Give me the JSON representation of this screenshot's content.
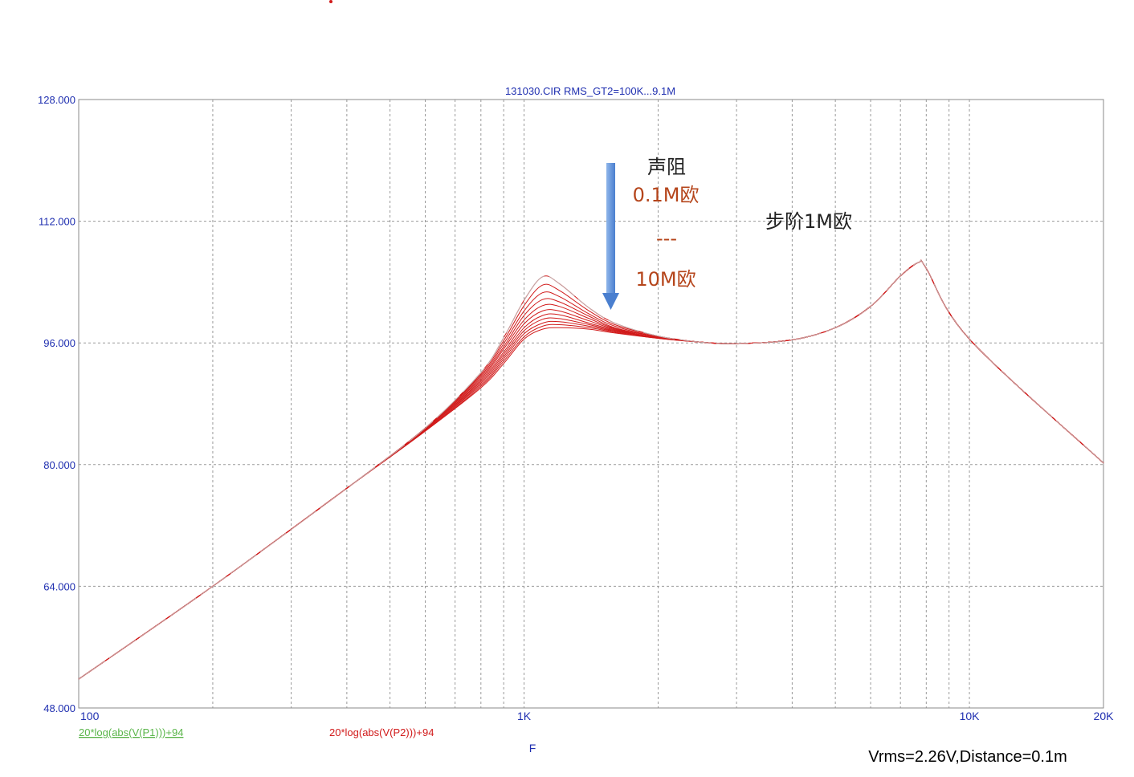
{
  "chart_data": {
    "type": "line",
    "title": "131030.CIR RMS_GT2=100K...9.1M",
    "xlabel": "F",
    "x_scale": "log",
    "xlim": [
      100,
      20000
    ],
    "ylim": [
      48,
      128
    ],
    "x_ticks": [
      {
        "value": 100,
        "label": "100"
      },
      {
        "value": 1000,
        "label": "1K"
      },
      {
        "value": 10000,
        "label": "10K"
      },
      {
        "value": 20000,
        "label": "20K"
      }
    ],
    "y_ticks": [
      {
        "value": 128,
        "label": "128.000"
      },
      {
        "value": 112,
        "label": "112.000"
      },
      {
        "value": 96,
        "label": "96.000"
      },
      {
        "value": 80,
        "label": "80.000"
      },
      {
        "value": 64,
        "label": "64.000"
      },
      {
        "value": 48,
        "label": "48.000"
      }
    ],
    "grid": true,
    "legend": [
      {
        "label": "20*log(abs(V(P1)))+94",
        "color": "#5ab54a"
      },
      {
        "label": "20*log(abs(V(P2)))+94",
        "color": "#d11a1a"
      }
    ],
    "series": [
      {
        "x": [
          100,
          200,
          400,
          600,
          800,
          900,
          1000,
          1100,
          1200,
          1400,
          1600,
          2000,
          2500,
          3000,
          4000,
          5000,
          6000,
          7000,
          7700,
          8000,
          10000,
          20000
        ],
        "y": [
          51.8,
          64.0,
          76.9,
          84.8,
          92.1,
          96.7,
          101.6,
          104.7,
          103.8,
          100.6,
          98.6,
          96.9,
          96.1,
          95.9,
          96.4,
          98.0,
          100.8,
          104.8,
          106.6,
          105.8,
          96.5,
          80.2
        ]
      },
      {
        "x": [
          100,
          200,
          400,
          600,
          800,
          900,
          1000,
          1100,
          1200,
          1400,
          1600,
          2000,
          2500,
          3000,
          4000,
          5000,
          6000,
          7000,
          7700,
          8000,
          10000,
          20000
        ],
        "y": [
          51.8,
          64.0,
          76.9,
          84.8,
          91.9,
          96.3,
          100.9,
          103.6,
          102.9,
          100.2,
          98.4,
          96.9,
          96.1,
          95.9,
          96.4,
          98.0,
          100.8,
          104.8,
          106.6,
          105.8,
          96.5,
          80.2
        ]
      },
      {
        "x": [
          100,
          200,
          400,
          600,
          800,
          900,
          1000,
          1100,
          1200,
          1400,
          1600,
          2000,
          2500,
          3000,
          4000,
          5000,
          6000,
          7000,
          7700,
          8000,
          10000,
          20000
        ],
        "y": [
          51.8,
          64.0,
          76.9,
          84.8,
          91.7,
          95.9,
          100.2,
          102.6,
          102.1,
          99.8,
          98.2,
          96.8,
          96.1,
          95.9,
          96.4,
          98.0,
          100.8,
          104.8,
          106.6,
          105.8,
          96.5,
          80.2
        ]
      },
      {
        "x": [
          100,
          200,
          400,
          600,
          800,
          900,
          1000,
          1100,
          1200,
          1400,
          1600,
          2000,
          2500,
          3000,
          4000,
          5000,
          6000,
          7000,
          7700,
          8000,
          10000,
          20000
        ],
        "y": [
          51.8,
          64.0,
          76.9,
          84.7,
          91.5,
          95.5,
          99.6,
          101.7,
          101.4,
          99.5,
          98.0,
          96.8,
          96.1,
          95.9,
          96.4,
          98.0,
          100.8,
          104.8,
          106.6,
          105.8,
          96.5,
          80.2
        ]
      },
      {
        "x": [
          100,
          200,
          400,
          600,
          800,
          900,
          1000,
          1100,
          1200,
          1400,
          1600,
          2000,
          2500,
          3000,
          4000,
          5000,
          6000,
          7000,
          7700,
          8000,
          10000,
          20000
        ],
        "y": [
          51.8,
          64.0,
          76.9,
          84.7,
          91.3,
          95.2,
          99.0,
          100.9,
          100.8,
          99.2,
          97.9,
          96.8,
          96.1,
          95.9,
          96.4,
          98.0,
          100.8,
          104.8,
          106.6,
          105.8,
          96.5,
          80.2
        ]
      },
      {
        "x": [
          100,
          200,
          400,
          600,
          800,
          900,
          1000,
          1100,
          1200,
          1400,
          1600,
          2000,
          2500,
          3000,
          4000,
          5000,
          6000,
          7000,
          7700,
          8000,
          10000,
          20000
        ],
        "y": [
          51.8,
          64.0,
          76.9,
          84.6,
          91.1,
          94.8,
          98.5,
          100.2,
          100.2,
          98.9,
          97.8,
          96.7,
          96.1,
          95.9,
          96.4,
          98.0,
          100.8,
          104.8,
          106.6,
          105.8,
          96.5,
          80.2
        ]
      },
      {
        "x": [
          100,
          200,
          400,
          600,
          800,
          900,
          1000,
          1100,
          1200,
          1400,
          1600,
          2000,
          2500,
          3000,
          4000,
          5000,
          6000,
          7000,
          7700,
          8000,
          10000,
          20000
        ],
        "y": [
          51.8,
          64.0,
          76.9,
          84.6,
          90.9,
          94.5,
          98.0,
          99.6,
          99.7,
          98.6,
          97.7,
          96.7,
          96.1,
          95.9,
          96.4,
          98.0,
          100.8,
          104.8,
          106.6,
          105.8,
          96.5,
          80.2
        ]
      },
      {
        "x": [
          100,
          200,
          400,
          600,
          800,
          900,
          1000,
          1100,
          1200,
          1400,
          1600,
          2000,
          2500,
          3000,
          4000,
          5000,
          6000,
          7000,
          7700,
          8000,
          10000,
          20000
        ],
        "y": [
          51.8,
          64.0,
          76.9,
          84.5,
          90.7,
          94.2,
          97.6,
          99.1,
          99.2,
          98.4,
          97.6,
          96.7,
          96.1,
          95.9,
          96.4,
          98.0,
          100.8,
          104.8,
          106.6,
          105.8,
          96.5,
          80.2
        ]
      },
      {
        "x": [
          100,
          200,
          400,
          600,
          800,
          900,
          1000,
          1100,
          1200,
          1400,
          1600,
          2000,
          2500,
          3000,
          4000,
          5000,
          6000,
          7000,
          7700,
          8000,
          10000,
          20000
        ],
        "y": [
          51.8,
          64.0,
          76.9,
          84.5,
          90.5,
          93.9,
          97.2,
          98.6,
          98.8,
          98.2,
          97.5,
          96.7,
          96.1,
          95.9,
          96.4,
          98.0,
          100.8,
          104.8,
          106.6,
          105.8,
          96.5,
          80.2
        ]
      },
      {
        "x": [
          100,
          200,
          400,
          600,
          800,
          900,
          1000,
          1100,
          1200,
          1400,
          1600,
          2000,
          2500,
          3000,
          4000,
          5000,
          6000,
          7000,
          7700,
          8000,
          10000,
          20000
        ],
        "y": [
          51.8,
          64.0,
          76.9,
          84.4,
          90.3,
          93.6,
          96.8,
          98.2,
          98.4,
          98.0,
          97.4,
          96.6,
          96.1,
          95.9,
          96.4,
          98.0,
          100.8,
          104.8,
          106.6,
          105.8,
          96.5,
          80.2
        ]
      },
      {
        "x": [
          100,
          200,
          400,
          600,
          800,
          900,
          1000,
          1100,
          1200,
          1400,
          1600,
          2000,
          2500,
          3000,
          4000,
          5000,
          6000,
          7000,
          7700,
          8000,
          10000,
          20000
        ],
        "y": [
          51.8,
          64.0,
          76.9,
          84.4,
          90.1,
          93.3,
          96.5,
          97.8,
          98.0,
          97.8,
          97.3,
          96.6,
          96.1,
          95.9,
          96.4,
          98.0,
          100.8,
          104.8,
          106.6,
          105.8,
          96.5,
          80.2
        ]
      }
    ]
  },
  "annotations": {
    "label_resistance": "声阻",
    "label_start": "0.1M欧",
    "label_dash": "---",
    "label_end": "10M欧",
    "label_step": "步阶1M欧"
  },
  "footnote": "Vrms=2.26V,Distance=0.1m",
  "colors": {
    "axis_text": "#1f2fb0",
    "series": "#d11a1a",
    "series_highlight": "#bdbdbd",
    "arrow": "#5b8fd6"
  }
}
